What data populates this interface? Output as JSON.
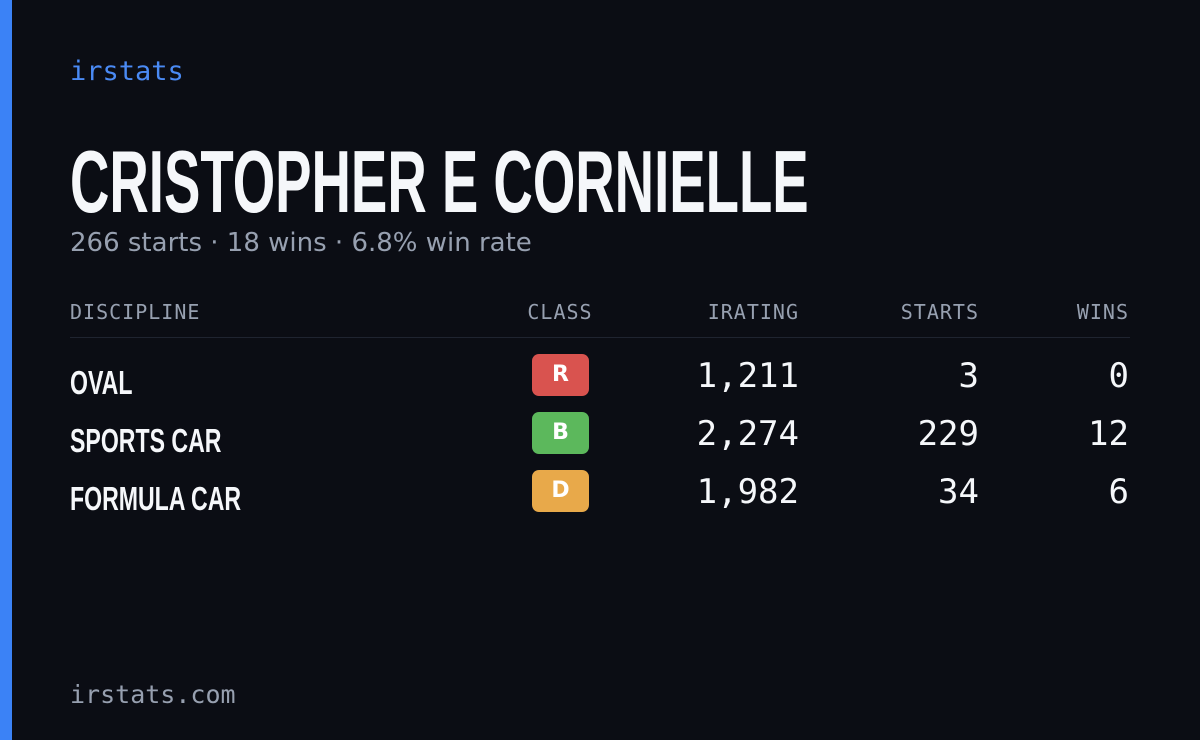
{
  "brand": "irstats",
  "title": "CRISTOPHER E CORNIELLE",
  "subtitle": "266 starts · 18 wins · 6.8% win rate",
  "table": {
    "headers": [
      "DISCIPLINE",
      "CLASS",
      "IRATING",
      "STARTS",
      "WINS"
    ],
    "rows": [
      [
        "OVAL",
        "R",
        "1,211",
        "3",
        "0"
      ],
      [
        "SPORTS CAR",
        "B",
        "2,274",
        "229",
        "12"
      ],
      [
        "FORMULA CAR",
        "D",
        "1,982",
        "34",
        "6"
      ]
    ]
  },
  "footer": "irstats.com"
}
